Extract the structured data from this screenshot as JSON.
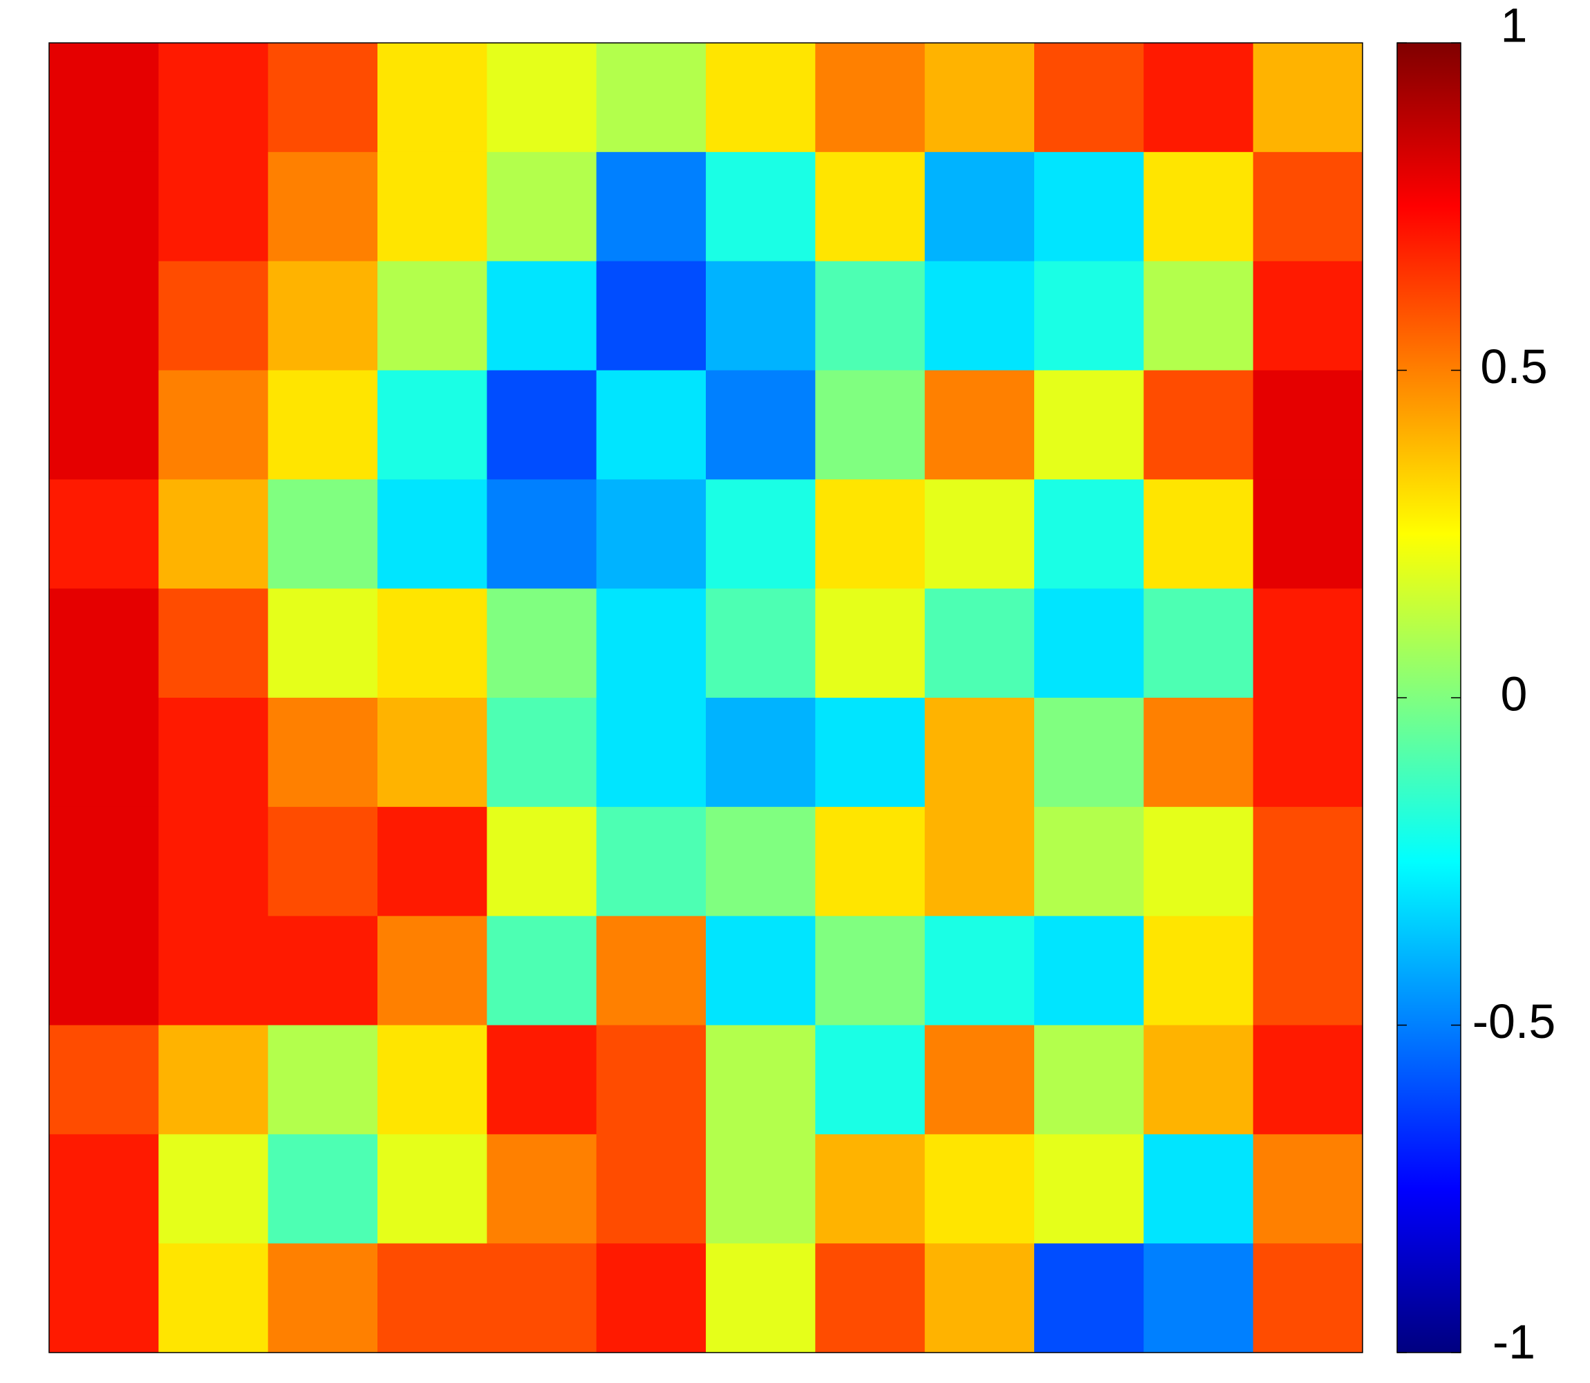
{
  "chart_data": {
    "type": "heatmap",
    "colormap": "jet",
    "z": [
      [
        0.8,
        0.7,
        0.6,
        0.3,
        0.2,
        0.1,
        0.3,
        0.5,
        0.4,
        0.6,
        0.7,
        0.4
      ],
      [
        0.8,
        0.7,
        0.5,
        0.3,
        0.1,
        -0.5,
        -0.2,
        0.3,
        -0.4,
        -0.3,
        0.3,
        0.6
      ],
      [
        0.8,
        0.6,
        0.4,
        0.1,
        -0.3,
        -0.6,
        -0.4,
        -0.1,
        -0.3,
        -0.2,
        0.1,
        0.7
      ],
      [
        0.8,
        0.5,
        0.3,
        -0.2,
        -0.6,
        -0.3,
        -0.5,
        0.0,
        0.5,
        0.2,
        0.6,
        0.8
      ],
      [
        0.7,
        0.4,
        0.0,
        -0.3,
        -0.5,
        -0.4,
        -0.2,
        0.3,
        0.2,
        -0.2,
        0.3,
        0.8
      ],
      [
        0.8,
        0.6,
        0.2,
        0.3,
        0.0,
        -0.3,
        -0.1,
        0.2,
        -0.1,
        -0.3,
        -0.1,
        0.7
      ],
      [
        0.8,
        0.7,
        0.5,
        0.4,
        -0.1,
        -0.3,
        -0.4,
        -0.3,
        0.4,
        0.0,
        0.5,
        0.7
      ],
      [
        0.8,
        0.7,
        0.6,
        0.7,
        0.2,
        -0.1,
        0.0,
        0.3,
        0.4,
        0.1,
        0.2,
        0.6
      ],
      [
        0.8,
        0.7,
        0.7,
        0.5,
        -0.1,
        0.5,
        -0.3,
        0.0,
        -0.2,
        -0.3,
        0.3,
        0.6
      ],
      [
        0.6,
        0.4,
        0.1,
        0.3,
        0.7,
        0.6,
        0.1,
        -0.2,
        0.5,
        0.1,
        0.4,
        0.7
      ],
      [
        0.7,
        0.2,
        -0.1,
        0.2,
        0.5,
        0.6,
        0.1,
        0.4,
        0.3,
        0.2,
        -0.3,
        0.5
      ],
      [
        0.7,
        0.3,
        0.5,
        0.6,
        0.6,
        0.7,
        0.2,
        0.6,
        0.4,
        -0.6,
        -0.5,
        0.6
      ]
    ],
    "zlim": [
      -1,
      1
    ],
    "zticks": [
      -1,
      -0.5,
      0,
      0.5,
      1
    ]
  }
}
